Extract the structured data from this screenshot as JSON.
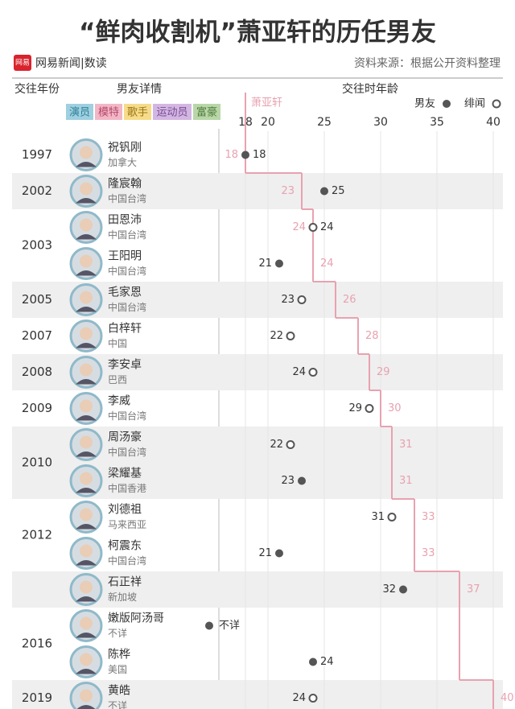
{
  "chart_data": {
    "type": "dot_timeline",
    "title": "“鲜肉收割机”萧亚轩的历任男友",
    "logo": "网易",
    "brand": "网易新闻|数读",
    "source": "资料来源：根据公开资料整理",
    "year_header": "交往年份",
    "detail_header": "男友详情",
    "age_header": "交往时年龄",
    "subject": "萧亚轩",
    "subject_color": "#e8a2b0",
    "dot_color": "#555555",
    "legend": [
      {
        "name": "男友",
        "style": "filled"
      },
      {
        "name": "绯闻",
        "style": "hollow"
      }
    ],
    "tags": [
      {
        "name": "演员",
        "color": "#9fd0e0",
        "text": "#2f7f99"
      },
      {
        "name": "模特",
        "color": "#f2b7c6",
        "text": "#b5476a"
      },
      {
        "name": "歌手",
        "color": "#f6dc8a",
        "text": "#9a7512"
      },
      {
        "name": "运动员",
        "color": "#d3b7e2",
        "text": "#7a4b95"
      },
      {
        "name": "富豪",
        "color": "#b9d6a8",
        "text": "#4f7c3b"
      }
    ],
    "xlim": [
      16,
      41
    ],
    "xticks": [
      18,
      20,
      25,
      30,
      35,
      40
    ],
    "groups": [
      {
        "year": "1997",
        "rows": [
          {
            "name": "祝钒刚",
            "origin": "加拿大",
            "age": 18,
            "status": "filled",
            "subject_age": 18
          }
        ]
      },
      {
        "year": "2002",
        "rows": [
          {
            "name": "隆宸翰",
            "origin": "中国台湾",
            "age": 25,
            "status": "filled",
            "subject_age": 23
          }
        ]
      },
      {
        "year": "2003",
        "rows": [
          {
            "name": "田恩沛",
            "origin": "中国台湾",
            "age": 24,
            "status": "hollow",
            "subject_age": 24
          },
          {
            "name": "王阳明",
            "origin": "中国台湾",
            "age": 21,
            "status": "filled",
            "subject_age": 24
          }
        ]
      },
      {
        "year": "2005",
        "rows": [
          {
            "name": "毛家恩",
            "origin": "中国台湾",
            "age": 23,
            "status": "hollow",
            "subject_age": 26
          }
        ]
      },
      {
        "year": "2007",
        "rows": [
          {
            "name": "白梓轩",
            "origin": "中国",
            "age": 22,
            "status": "hollow",
            "subject_age": 28
          }
        ]
      },
      {
        "year": "2008",
        "rows": [
          {
            "name": "李安卓",
            "origin": "巴西",
            "age": 24,
            "status": "hollow",
            "subject_age": 29
          }
        ]
      },
      {
        "year": "2009",
        "rows": [
          {
            "name": "李威",
            "origin": "中国台湾",
            "age": 29,
            "status": "hollow",
            "subject_age": 30
          }
        ]
      },
      {
        "year": "2010",
        "rows": [
          {
            "name": "周汤豪",
            "origin": "中国台湾",
            "age": 22,
            "status": "hollow",
            "subject_age": 31
          },
          {
            "name": "梁耀基",
            "origin": "中国香港",
            "age": 23,
            "status": "filled",
            "subject_age": 31
          }
        ]
      },
      {
        "year": "2012",
        "rows": [
          {
            "name": "刘德祖",
            "origin": "马来西亚",
            "age": 31,
            "status": "hollow",
            "subject_age": 33
          },
          {
            "name": "柯震东",
            "origin": "中国台湾",
            "age": 21,
            "status": "filled",
            "subject_age": 33
          }
        ]
      },
      {
        "year": null,
        "rows": [
          {
            "name": "石正祥",
            "origin": "新加坡",
            "age": 32,
            "status": "filled",
            "subject_age": 37
          }
        ]
      },
      {
        "year": "2016",
        "rows": [
          {
            "name": "嫩版阿汤哥",
            "origin": "不详",
            "age": null,
            "age_label": "不详",
            "status": "filled",
            "subject_age": null
          },
          {
            "name": "陈桦",
            "origin": "美国",
            "age": 24,
            "status": "filled",
            "subject_age": null
          }
        ]
      },
      {
        "year": "2019",
        "rows": [
          {
            "name": "黄皓",
            "origin": "不详",
            "age": 24,
            "status": "hollow",
            "subject_age": 40
          }
        ]
      }
    ]
  }
}
